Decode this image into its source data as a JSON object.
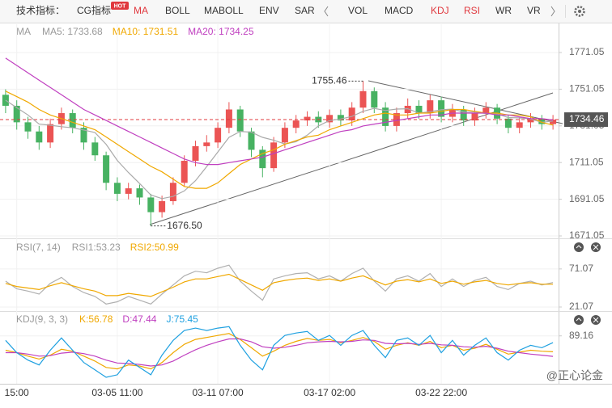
{
  "toolbar": {
    "label": "技术指标：",
    "items": [
      {
        "text": "CG指标",
        "badge": "HOT"
      },
      {
        "text": "MA",
        "active": true
      },
      {
        "text": "BOLL"
      },
      {
        "text": "MABOLL"
      },
      {
        "text": "ENV"
      },
      {
        "text": "SAR"
      },
      {
        "text": "VOL"
      },
      {
        "text": "MACD"
      },
      {
        "text": "KDJ",
        "active": true
      },
      {
        "text": "RSI",
        "active": true
      },
      {
        "text": "WR"
      },
      {
        "text": "VR"
      }
    ]
  },
  "watermark": "@正心论金",
  "chart_data": [
    {
      "type": "candlestick",
      "title": "MA",
      "categories": [
        null,
        "15:00",
        null,
        null,
        null,
        null,
        null,
        null,
        null,
        null,
        "03-05 11:00",
        null,
        null,
        null,
        null,
        null,
        null,
        null,
        null,
        "03-11 07:00",
        null,
        null,
        null,
        null,
        null,
        null,
        null,
        null,
        null,
        "03-17 02:00",
        null,
        null,
        null,
        null,
        null,
        null,
        null,
        null,
        null,
        "03-22 22:00",
        null,
        null,
        null,
        null,
        null,
        null,
        null,
        null,
        null,
        null
      ],
      "open": [
        1748,
        1742,
        1733,
        1728,
        1722,
        1732,
        1738,
        1730,
        1722,
        1715,
        1700,
        1694,
        1697,
        1692,
        1684,
        1690,
        1700,
        1712,
        1720,
        1722,
        1730,
        1740,
        1728,
        1718,
        1708,
        1722,
        1730,
        1734,
        1736,
        1733,
        1737,
        1734,
        1741,
        1750,
        1741,
        1731,
        1738,
        1742,
        1738,
        1745,
        1736,
        1740,
        1734,
        1738,
        1741,
        1735,
        1730,
        1733,
        1735,
        1732
      ],
      "high": [
        1751,
        1745,
        1736,
        1731,
        1735,
        1741,
        1740,
        1733,
        1725,
        1717,
        1703,
        1700,
        1699,
        1694,
        1693,
        1703,
        1715,
        1723,
        1726,
        1733,
        1744,
        1742,
        1730,
        1720,
        1725,
        1733,
        1737,
        1739,
        1739,
        1740,
        1740,
        1744,
        1755.46,
        1752,
        1744,
        1741,
        1746,
        1745,
        1748,
        1747,
        1743,
        1742,
        1741,
        1744,
        1743,
        1737,
        1736,
        1738,
        1737,
        1737
      ],
      "low": [
        1738,
        1729,
        1724,
        1718,
        1719,
        1729,
        1727,
        1718,
        1712,
        1696,
        1690,
        1691,
        1688,
        1676.5,
        1681,
        1688,
        1698,
        1709,
        1717,
        1719,
        1727,
        1725,
        1714,
        1703,
        1706,
        1719,
        1727,
        1731,
        1730,
        1730,
        1731,
        1731,
        1738,
        1738,
        1728,
        1728,
        1735,
        1735,
        1735,
        1733,
        1733,
        1731,
        1731,
        1735,
        1732,
        1727,
        1727,
        1730,
        1729,
        1729
      ],
      "close": [
        1742,
        1733,
        1728,
        1722,
        1732,
        1738,
        1730,
        1722,
        1715,
        1700,
        1694,
        1697,
        1692,
        1684,
        1690,
        1700,
        1712,
        1720,
        1722,
        1730,
        1740,
        1728,
        1718,
        1708,
        1722,
        1730,
        1734,
        1736,
        1733,
        1737,
        1734,
        1741,
        1750,
        1741,
        1731,
        1738,
        1742,
        1738,
        1745,
        1736,
        1740,
        1734,
        1738,
        1741,
        1735,
        1730,
        1733,
        1735,
        1732,
        1734.46
      ],
      "up_color": "#eb5454",
      "down_color": "#47b262",
      "last_price_color": "#e0383e",
      "annotations": [
        "1755.46",
        "1676.50"
      ],
      "series": [
        {
          "legend": "MA5: 1733.68",
          "color": "#aaaaaa",
          "values": [
            1745,
            1741,
            1737,
            1732,
            1731.4,
            1730.6,
            1730,
            1728.8,
            1727.4,
            1721,
            1712.2,
            1705.6,
            1699.6,
            1693.4,
            1691.4,
            1692.6,
            1695.6,
            1701.2,
            1708.8,
            1716.8,
            1724.8,
            1728,
            1727.6,
            1724.8,
            1723.2,
            1721.2,
            1722.4,
            1726,
            1731,
            1734,
            1734.8,
            1736.2,
            1739,
            1740.6,
            1739.4,
            1740.2,
            1740.4,
            1738,
            1738.8,
            1739.8,
            1740.2,
            1738.6,
            1738.6,
            1737.8,
            1737.6,
            1735.6,
            1735.4,
            1734.8,
            1733,
            1733.68
          ]
        },
        {
          "legend": "MA10: 1731.51",
          "color": "#f0a800",
          "values": [
            1750,
            1747,
            1744,
            1740,
            1737,
            1735,
            1733,
            1731,
            1729,
            1725,
            1721,
            1717,
            1713,
            1709,
            1706,
            1702,
            1698,
            1697,
            1697,
            1700,
            1705,
            1710,
            1713,
            1716,
            1718,
            1721,
            1723,
            1725,
            1726,
            1729,
            1731,
            1733,
            1735,
            1737,
            1738,
            1737,
            1737,
            1738,
            1738,
            1739,
            1740,
            1740,
            1739,
            1738,
            1738,
            1737,
            1737,
            1736,
            1733,
            1731.51
          ]
        },
        {
          "legend": "MA20: 1734.25",
          "color": "#c040c0",
          "values": [
            1768,
            1764,
            1760,
            1756,
            1752,
            1748,
            1744,
            1740,
            1737,
            1734,
            1731,
            1728,
            1725,
            1722,
            1719,
            1716,
            1713,
            1711,
            1710,
            1710,
            1711,
            1712,
            1713,
            1714,
            1716,
            1718,
            1720,
            1722,
            1724,
            1726,
            1728,
            1729,
            1731,
            1732,
            1733,
            1734,
            1735,
            1736,
            1737,
            1737,
            1738,
            1738,
            1738,
            1738,
            1737,
            1737,
            1736,
            1735,
            1735,
            1734.25
          ]
        }
      ],
      "ylim": [
        1671.05,
        1786.47
      ],
      "yticks": [
        1771.05,
        1751.05,
        1731.05,
        1711.05,
        1691.05,
        1671.05
      ],
      "grid": true
    },
    {
      "type": "line",
      "title": "RSI(7, 14)",
      "series": [
        {
          "legend": "RSI1:53.23",
          "color": "#b0b0b0",
          "values": [
            55,
            45,
            42,
            38,
            52,
            60,
            48,
            40,
            35,
            25,
            28,
            35,
            30,
            25,
            38,
            50,
            62,
            68,
            66,
            72,
            76,
            55,
            42,
            30,
            58,
            62,
            65,
            66,
            58,
            62,
            55,
            65,
            72,
            55,
            42,
            58,
            62,
            55,
            65,
            48,
            58,
            48,
            56,
            60,
            48,
            44,
            52,
            55,
            50,
            53.23
          ]
        },
        {
          "legend": "RSI2:50.99",
          "color": "#f0a800",
          "values": [
            52,
            48,
            46,
            44,
            49,
            53,
            49,
            45,
            42,
            36,
            36,
            39,
            37,
            35,
            41,
            47,
            54,
            58,
            58,
            61,
            64,
            57,
            50,
            43,
            53,
            56,
            58,
            59,
            56,
            58,
            55,
            59,
            62,
            56,
            50,
            55,
            57,
            54,
            58,
            52,
            55,
            51,
            54,
            56,
            52,
            50,
            52,
            53,
            51,
            50.99
          ]
        }
      ],
      "ylim": [
        21.07,
        90
      ],
      "yticks": [
        71.07,
        21.07
      ],
      "grid": true
    },
    {
      "type": "line",
      "title": "KDJ(9, 3, 3)",
      "series": [
        {
          "legend": "K:56.78",
          "color": "#f0a800",
          "values": [
            60,
            55,
            48,
            42,
            50,
            62,
            58,
            48,
            38,
            25,
            22,
            30,
            28,
            22,
            35,
            55,
            72,
            82,
            86,
            90,
            94,
            82,
            65,
            48,
            58,
            70,
            78,
            84,
            80,
            82,
            75,
            80,
            86,
            78,
            62,
            70,
            75,
            70,
            78,
            65,
            70,
            60,
            64,
            72,
            62,
            52,
            56,
            60,
            58,
            56.78
          ]
        },
        {
          "legend": "D:47.44",
          "color": "#c040c0",
          "values": [
            55,
            55,
            52,
            48,
            49,
            54,
            56,
            53,
            48,
            40,
            34,
            33,
            31,
            28,
            30,
            38,
            50,
            61,
            70,
            77,
            83,
            83,
            77,
            67,
            64,
            66,
            70,
            75,
            77,
            78,
            77,
            78,
            81,
            80,
            74,
            73,
            74,
            72,
            74,
            71,
            70,
            67,
            66,
            68,
            64,
            58,
            55,
            52,
            50,
            47.44
          ]
        },
        {
          "legend": "J:75.45",
          "color": "#1ea0e0",
          "values": [
            80,
            55,
            40,
            30,
            60,
            85,
            60,
            35,
            20,
            5,
            10,
            40,
            25,
            10,
            50,
            80,
            100,
            105,
            100,
            105,
            108,
            70,
            40,
            20,
            70,
            90,
            95,
            98,
            80,
            90,
            70,
            90,
            100,
            70,
            45,
            80,
            85,
            70,
            90,
            55,
            80,
            50,
            70,
            85,
            55,
            40,
            60,
            70,
            65,
            75.45
          ]
        }
      ],
      "ylim": [
        0,
        115
      ],
      "yticks": [
        89.16
      ],
      "grid": true
    }
  ]
}
